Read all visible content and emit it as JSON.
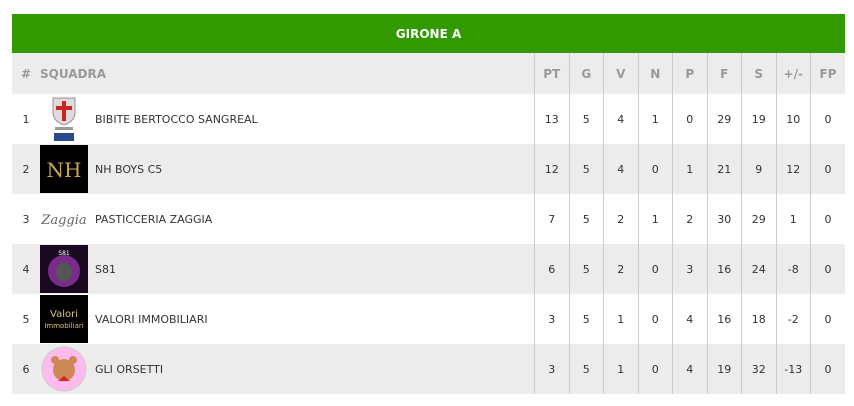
{
  "title": "GIRONE A",
  "columns": [
    "#",
    "SQUADRA",
    "PT",
    "G",
    "V",
    "N",
    "P",
    "F",
    "S",
    "+/-",
    "FP"
  ],
  "rows": [
    {
      "pos": "1",
      "team": "BIBITE BERTOCCO SANGREAL",
      "logo": "sangreal-shield-logo",
      "stats": [
        "13",
        "5",
        "4",
        "1",
        "0",
        "29",
        "19",
        "10",
        "0"
      ]
    },
    {
      "pos": "2",
      "team": "NH BOYS C5",
      "logo": "nh-gold-logo",
      "stats": [
        "12",
        "5",
        "4",
        "0",
        "1",
        "21",
        "9",
        "12",
        "0"
      ]
    },
    {
      "pos": "3",
      "team": "PASTICCERIA ZAGGIA",
      "logo": "zaggia-script-logo",
      "stats": [
        "7",
        "5",
        "2",
        "1",
        "2",
        "30",
        "29",
        "1",
        "0"
      ]
    },
    {
      "pos": "4",
      "team": "S81",
      "logo": "s81-alien-logo",
      "stats": [
        "6",
        "5",
        "2",
        "0",
        "3",
        "16",
        "24",
        "-8",
        "0"
      ]
    },
    {
      "pos": "5",
      "team": "VALORI IMMOBILIARI",
      "logo": "valori-immobiliari-logo",
      "stats": [
        "3",
        "5",
        "1",
        "0",
        "4",
        "16",
        "18",
        "-2",
        "0"
      ]
    },
    {
      "pos": "6",
      "team": "GLI ORSETTI",
      "logo": "orsetti-bear-logo",
      "stats": [
        "3",
        "5",
        "1",
        "0",
        "4",
        "19",
        "32",
        "-13",
        "0"
      ]
    }
  ],
  "colors": {
    "header_green": "#339900",
    "row_alt": "#ececec"
  }
}
